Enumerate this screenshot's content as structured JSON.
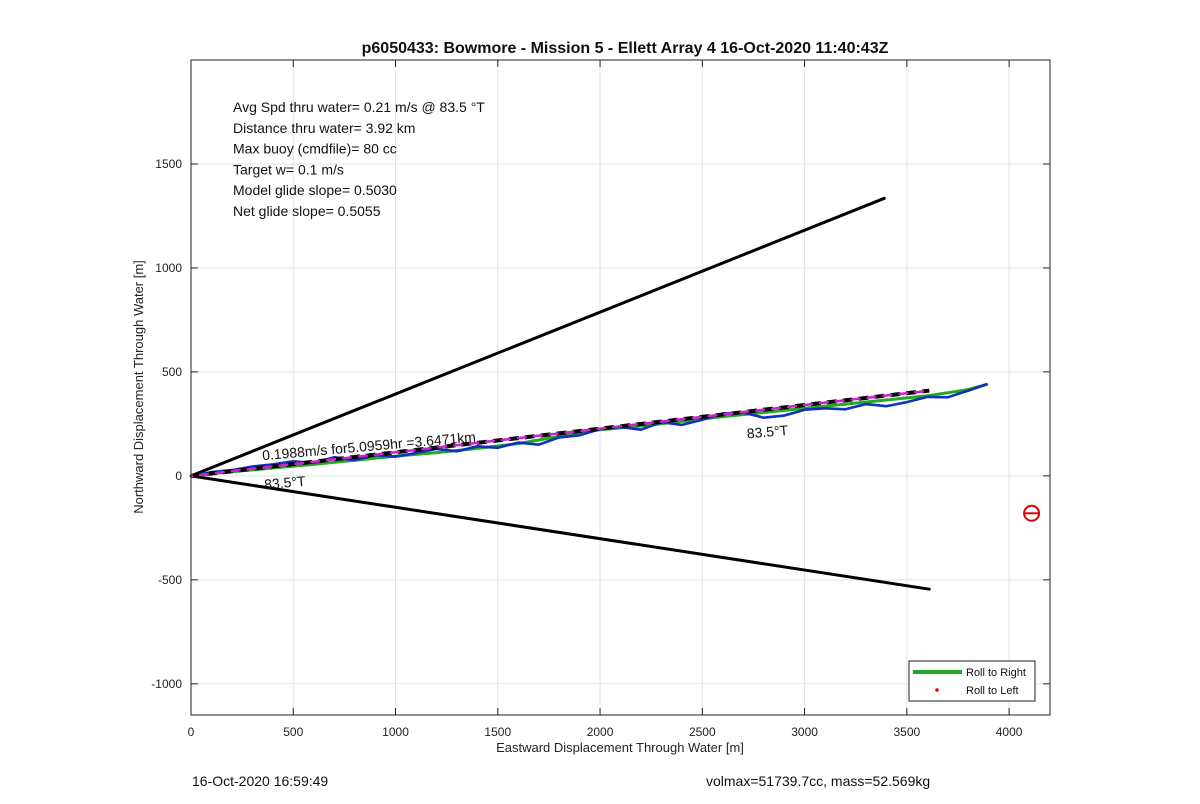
{
  "chart_data": {
    "type": "line",
    "title": "p6050433: Bowmore - Mission 5 - Ellett Array 4 16-Oct-2020 11:40:43Z",
    "xlabel": "Eastward Displacement Through Water [m]",
    "ylabel": "Northward Displacement Through Water [m]",
    "xlim": [
      0,
      4200
    ],
    "ylim": [
      -1150,
      2000
    ],
    "xticks": [
      0,
      500,
      1000,
      1500,
      2000,
      2500,
      3000,
      3500,
      4000
    ],
    "yticks": [
      -1000,
      -500,
      0,
      500,
      1000,
      1500
    ],
    "grid": true,
    "legend_position": "bottom-right",
    "legend": [
      {
        "label": "Roll to Right",
        "color": "#22aa22",
        "style": "line"
      },
      {
        "label": "Roll to Left",
        "color": "#dd0000",
        "style": "dot"
      }
    ],
    "info_text": [
      "Avg Spd thru water=  0.21 m/s @  83.5 °T",
      "Distance thru water=  3.92 km",
      "Max buoy (cmdfile)= 80 cc",
      "Target w= 0.1 m/s",
      "Model glide slope= 0.5030",
      "Net glide slope= 0.5055"
    ],
    "annotations": [
      {
        "text": "0.1988m/s for5.0959hr =3.6471km",
        "x": 350,
        "y": 75,
        "rotate": -5
      },
      {
        "text": "83.5°T",
        "x": 360,
        "y": -65,
        "rotate": -5
      },
      {
        "text": "83.5°T",
        "x": 2720,
        "y": 180,
        "rotate": -5
      }
    ],
    "series": [
      {
        "style": "boundary",
        "color": "#000000",
        "x": [
          0,
          3390
        ],
        "y": [
          0,
          1335
        ]
      },
      {
        "style": "boundary",
        "color": "#000000",
        "x": [
          0,
          3610
        ],
        "y": [
          0,
          -545
        ]
      },
      {
        "name": "Roll to Right",
        "style": "track",
        "color": "#22aa22",
        "x": [
          0,
          200,
          400,
          600,
          800,
          1000,
          1200,
          1400,
          1600,
          1800,
          2000,
          2200,
          2400,
          2600,
          2800,
          3000,
          3200,
          3400,
          3600,
          3800,
          3890
        ],
        "y": [
          0,
          20,
          38,
          55,
          75,
          95,
          112,
          132,
          155,
          190,
          222,
          240,
          262,
          285,
          305,
          325,
          345,
          365,
          385,
          415,
          440
        ]
      },
      {
        "style": "track",
        "color": "#1030c0",
        "x": [
          0,
          100,
          200,
          300,
          400,
          500,
          600,
          700,
          800,
          900,
          1000,
          1100,
          1200,
          1300,
          1400,
          1500,
          1600,
          1700,
          1800,
          1900,
          2000,
          2100,
          2200,
          2300,
          2400,
          2500,
          2600,
          2700,
          2800,
          2900,
          3000,
          3100,
          3200,
          3300,
          3400,
          3500,
          3600,
          3700,
          3800,
          3890
        ],
        "y": [
          0,
          18,
          28,
          45,
          55,
          70,
          62,
          90,
          75,
          100,
          92,
          110,
          130,
          118,
          142,
          135,
          160,
          150,
          185,
          195,
          225,
          235,
          222,
          258,
          245,
          270,
          300,
          305,
          280,
          290,
          318,
          325,
          320,
          345,
          335,
          355,
          380,
          378,
          410,
          440
        ]
      },
      {
        "style": "dashed-black",
        "color": "#000000",
        "x": [
          0,
          3610
        ],
        "y": [
          0,
          410
        ]
      },
      {
        "style": "dashed-magenta",
        "color": "#cc22cc",
        "x": [
          0,
          3610
        ],
        "y": [
          0,
          410
        ]
      }
    ],
    "marker": {
      "x": 4110,
      "y": -180,
      "color": "#dd0000",
      "shape": "circle-cross"
    }
  },
  "footer": {
    "left": "16-Oct-2020 16:59:49",
    "right": "volmax=51739.7cc, mass=52.569kg"
  }
}
